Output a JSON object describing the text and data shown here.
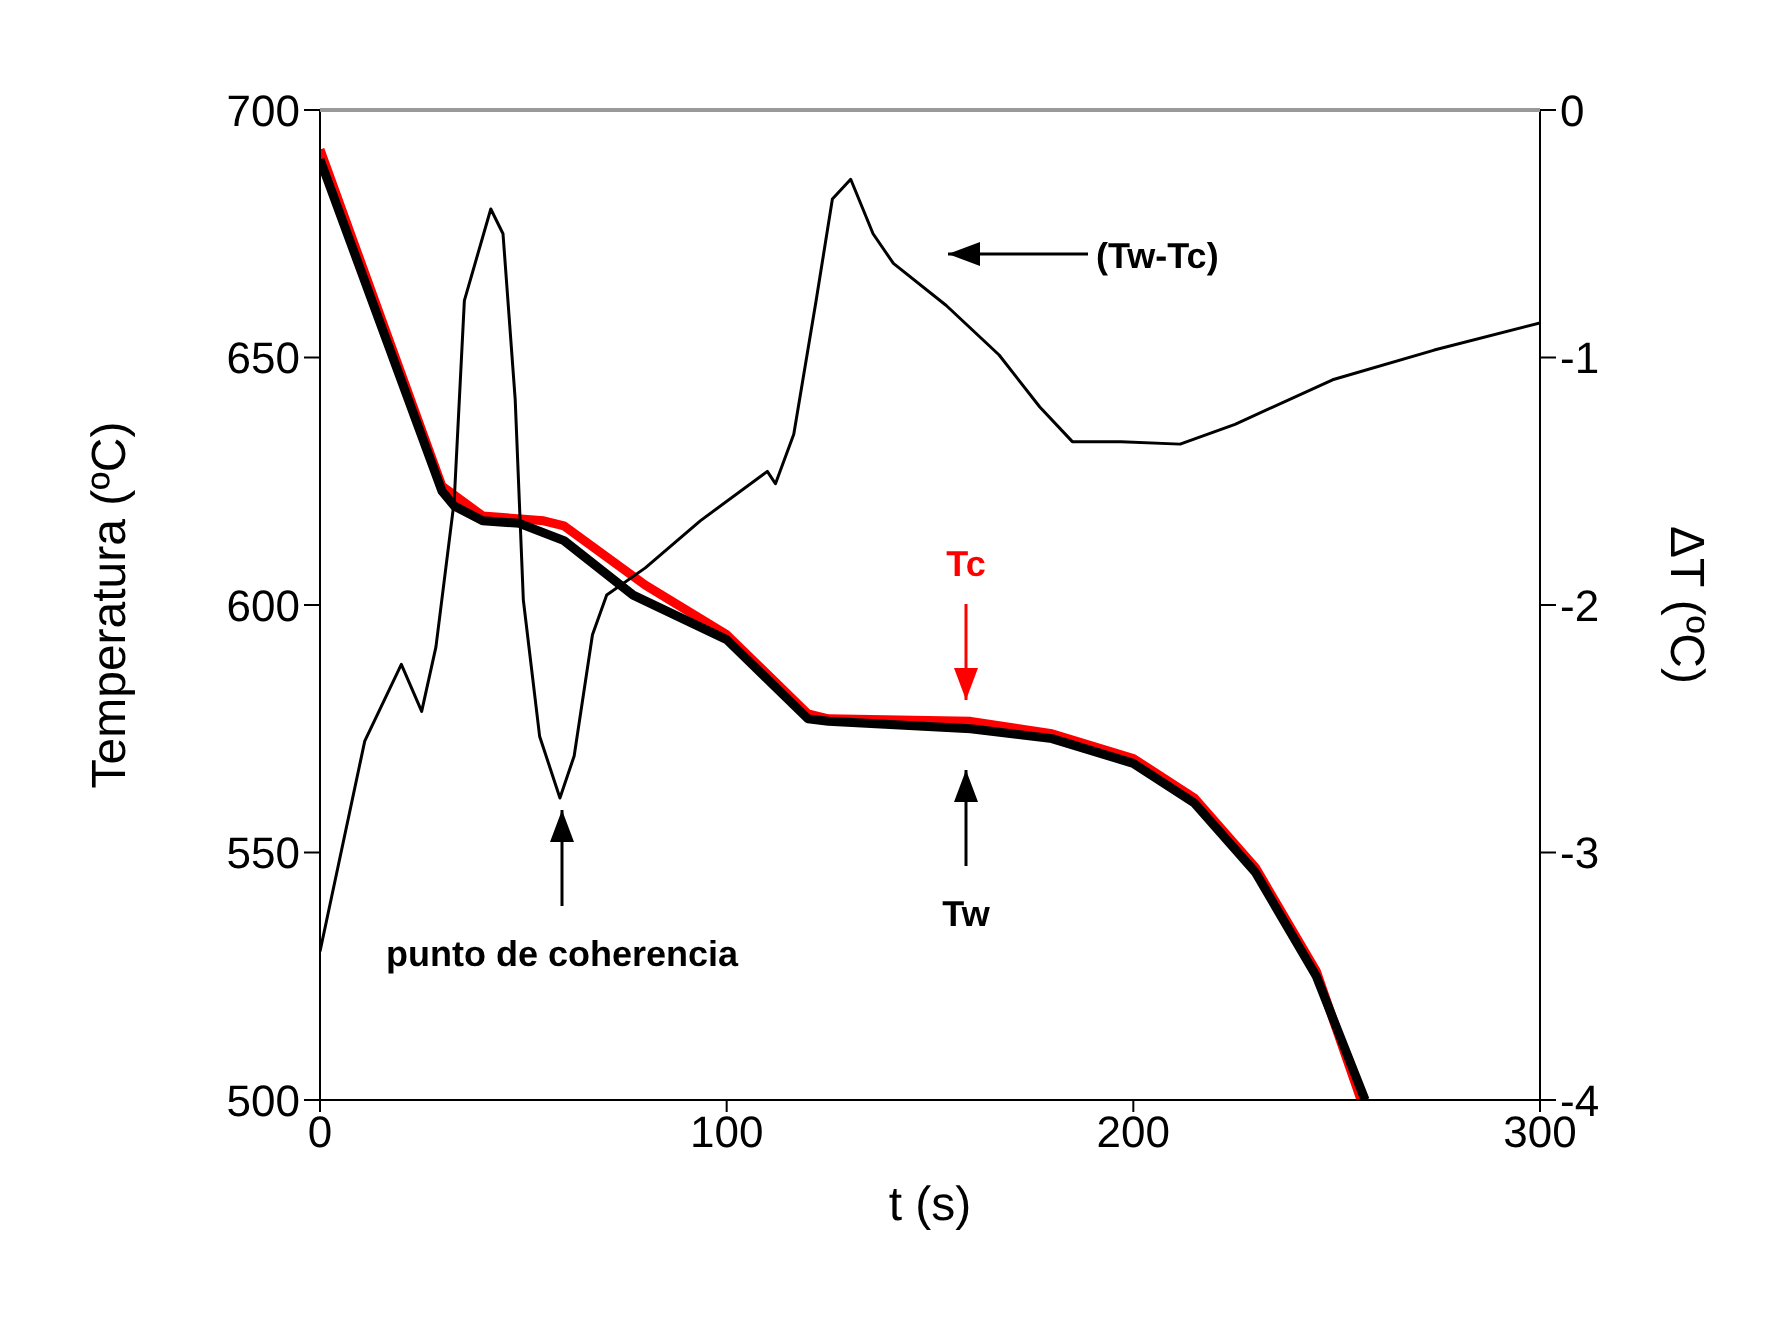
{
  "chart_data": {
    "type": "line",
    "xlabel": "t (s)",
    "ylabel": "Temperatura (ºC)",
    "y2label": "ΔT (ºC)",
    "xlim": [
      0,
      300
    ],
    "xticks": [
      0,
      100,
      200,
      300
    ],
    "ylim": [
      500,
      700
    ],
    "yticks": [
      500,
      550,
      600,
      650,
      700
    ],
    "y2lim": [
      -4,
      0
    ],
    "y2ticks": [
      -4,
      -3,
      -2,
      -1,
      0
    ],
    "marker": "none",
    "line_style": "solid",
    "series": [
      {
        "color": "#ff0000",
        "x": [
          0,
          30,
          40,
          55,
          60,
          80,
          100,
          120,
          125,
          160,
          180,
          200,
          215,
          230,
          245,
          256
        ],
        "values": [
          692,
          624,
          618,
          617,
          616,
          604,
          594,
          578,
          577,
          576.5,
          574,
          569,
          561,
          547,
          526,
          500
        ]
      },
      {
        "color": "#000000",
        "x": [
          0,
          30,
          33,
          40,
          49,
          60,
          77,
          100,
          120,
          125,
          160,
          180,
          200,
          215,
          230,
          245,
          257
        ],
        "values": [
          690,
          623,
          620,
          617,
          616.5,
          613,
          602,
          593,
          577,
          576.5,
          575,
          573,
          568,
          560,
          546,
          525,
          500
        ]
      },
      {
        "color": "#000000",
        "axis": "y2",
        "x": [
          0,
          11,
          20,
          25,
          28.5,
          33,
          35.5,
          42,
          45,
          48,
          50,
          54,
          59,
          62.5,
          67,
          70.5,
          80,
          93.5,
          110,
          112,
          116.5,
          122,
          126,
          130.5,
          136,
          141,
          154,
          167,
          177,
          185,
          197,
          211.5,
          225,
          249,
          274,
          300
        ],
        "values": [
          -3.4,
          -2.55,
          -2.24,
          -2.43,
          -2.17,
          -1.58,
          -0.77,
          -0.4,
          -0.5,
          -1.17,
          -1.98,
          -2.53,
          -2.78,
          -2.61,
          -2.12,
          -1.96,
          -1.85,
          -1.66,
          -1.46,
          -1.51,
          -1.31,
          -0.77,
          -0.36,
          -0.28,
          -0.5,
          -0.62,
          -0.79,
          -0.99,
          -1.2,
          -1.34,
          -1.34,
          -1.35,
          -1.27,
          -1.09,
          -0.97,
          -0.86
        ]
      }
    ],
    "annotations": [
      "punto de coherencia",
      "Tw",
      "Tc",
      "(Tw-Tc)"
    ]
  }
}
